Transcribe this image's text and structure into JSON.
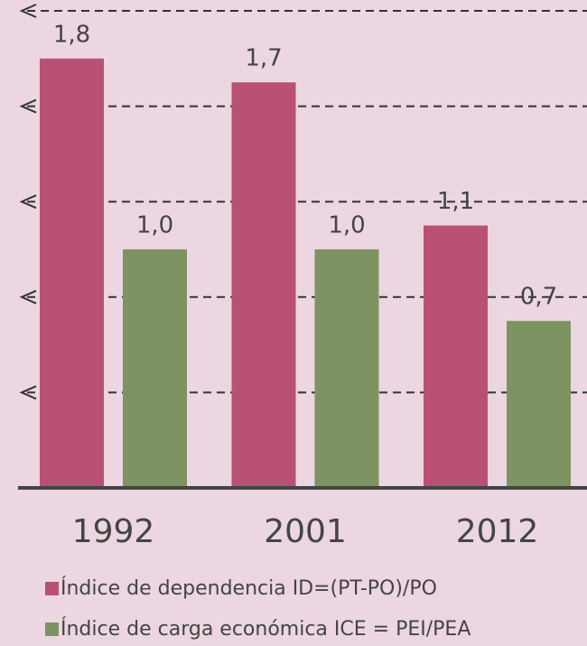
{
  "chart_data": {
    "type": "bar",
    "categories": [
      "1992",
      "2001",
      "2012"
    ],
    "series": [
      {
        "name": "Índice de dependencia ID=(PT-PO)/PO",
        "color": "#b85173",
        "values": [
          1.8,
          1.7,
          1.1
        ],
        "value_labels": [
          "1,8",
          "1,7",
          "1,1"
        ]
      },
      {
        "name": "Índice de carga económica ICE = PEI/PEA",
        "color": "#7d9462",
        "values": [
          1.0,
          1.0,
          0.7
        ],
        "value_labels": [
          "1,0",
          "1,0",
          "0,7"
        ]
      }
    ],
    "ylim": [
      0,
      2.0
    ],
    "yticks": [
      0.4,
      0.8,
      1.2,
      1.6,
      2.0
    ],
    "grid": true
  }
}
